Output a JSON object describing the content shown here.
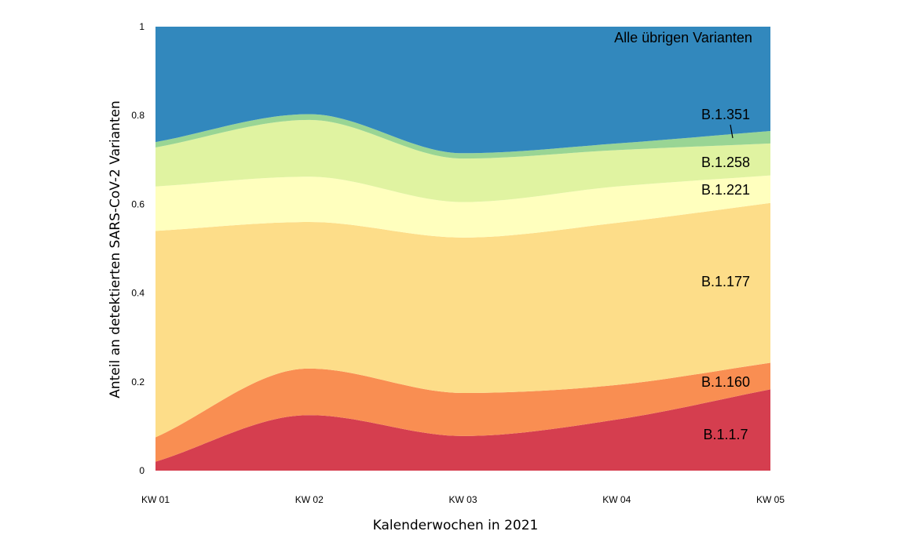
{
  "chart_data": {
    "type": "area",
    "stacked": true,
    "smoothed": true,
    "x": [
      "KW 01",
      "KW 02",
      "KW 03",
      "KW 04",
      "KW 05"
    ],
    "xlabel": "Kalenderwochen  in 2021",
    "ylabel": "Anteil an detektierten SARS-CoV-2 Varianten",
    "ylim": [
      0,
      1
    ],
    "yticks": [
      "0",
      "0.2",
      "0.4",
      "0.6",
      "0.8",
      "1"
    ],
    "grid": false,
    "legend": "inline labels on right",
    "series": [
      {
        "name": "B.1.1.7",
        "color": "#d53e4f",
        "values": [
          0.02,
          0.125,
          0.078,
          0.115,
          0.183
        ]
      },
      {
        "name": "B.1.160",
        "color": "#f98e52",
        "values": [
          0.055,
          0.105,
          0.097,
          0.078,
          0.06
        ]
      },
      {
        "name": "B.1.177",
        "color": "#fddd89",
        "values": [
          0.465,
          0.33,
          0.35,
          0.365,
          0.36
        ]
      },
      {
        "name": "B.1.221",
        "color": "#ffffbe",
        "values": [
          0.1,
          0.102,
          0.08,
          0.082,
          0.062
        ]
      },
      {
        "name": "B.1.258",
        "color": "#e0f3a1",
        "values": [
          0.088,
          0.128,
          0.098,
          0.082,
          0.072
        ]
      },
      {
        "name": "B.1.351",
        "color": "#99d594",
        "values": [
          0.012,
          0.013,
          0.012,
          0.015,
          0.028
        ]
      },
      {
        "name": "Alle übrigen Varianten",
        "color": "#3288bd",
        "values": [
          0.26,
          0.197,
          0.285,
          0.263,
          0.235
        ]
      }
    ]
  }
}
